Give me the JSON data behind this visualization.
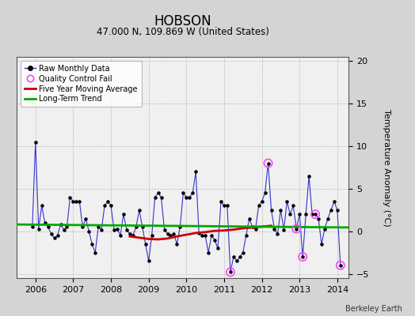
{
  "title": "HOBSON",
  "subtitle": "47.000 N, 109.869 W (United States)",
  "ylabel": "Temperature Anomaly (°C)",
  "credit": "Berkeley Earth",
  "ylim": [
    -5.5,
    20.5
  ],
  "yticks": [
    -5,
    0,
    5,
    10,
    15,
    20
  ],
  "xlim": [
    2005.5,
    2014.3
  ],
  "xticks": [
    2006,
    2007,
    2008,
    2009,
    2010,
    2011,
    2012,
    2013,
    2014
  ],
  "fig_bg_color": "#d4d4d4",
  "plot_bg_color": "#f0f0f0",
  "raw_color": "#3333cc",
  "raw_marker_color": "#000000",
  "ma_color": "#cc0000",
  "trend_color": "#00aa00",
  "qc_color": "#ff44ff",
  "raw_data": [
    [
      2005.917,
      0.5
    ],
    [
      2006.0,
      10.5
    ],
    [
      2006.083,
      0.3
    ],
    [
      2006.167,
      3.0
    ],
    [
      2006.25,
      1.0
    ],
    [
      2006.333,
      0.5
    ],
    [
      2006.417,
      -0.3
    ],
    [
      2006.5,
      -0.8
    ],
    [
      2006.583,
      -0.5
    ],
    [
      2006.667,
      0.8
    ],
    [
      2006.75,
      0.2
    ],
    [
      2006.833,
      0.5
    ],
    [
      2006.917,
      4.0
    ],
    [
      2007.0,
      3.5
    ],
    [
      2007.083,
      3.5
    ],
    [
      2007.167,
      3.5
    ],
    [
      2007.25,
      0.5
    ],
    [
      2007.333,
      1.5
    ],
    [
      2007.417,
      0.0
    ],
    [
      2007.5,
      -1.5
    ],
    [
      2007.583,
      -2.5
    ],
    [
      2007.667,
      0.5
    ],
    [
      2007.75,
      0.2
    ],
    [
      2007.833,
      3.0
    ],
    [
      2007.917,
      3.5
    ],
    [
      2008.0,
      3.0
    ],
    [
      2008.083,
      0.2
    ],
    [
      2008.167,
      0.3
    ],
    [
      2008.25,
      -0.5
    ],
    [
      2008.333,
      2.0
    ],
    [
      2008.417,
      0.2
    ],
    [
      2008.5,
      -0.3
    ],
    [
      2008.583,
      -0.5
    ],
    [
      2008.667,
      0.5
    ],
    [
      2008.75,
      2.5
    ],
    [
      2008.833,
      0.5
    ],
    [
      2008.917,
      -1.5
    ],
    [
      2009.0,
      -3.5
    ],
    [
      2009.083,
      -0.5
    ],
    [
      2009.167,
      4.0
    ],
    [
      2009.25,
      4.5
    ],
    [
      2009.333,
      4.0
    ],
    [
      2009.417,
      0.2
    ],
    [
      2009.5,
      -0.3
    ],
    [
      2009.583,
      -0.5
    ],
    [
      2009.667,
      -0.3
    ],
    [
      2009.75,
      -1.5
    ],
    [
      2009.833,
      0.5
    ],
    [
      2009.917,
      4.5
    ],
    [
      2010.0,
      4.0
    ],
    [
      2010.083,
      4.0
    ],
    [
      2010.167,
      4.5
    ],
    [
      2010.25,
      7.0
    ],
    [
      2010.333,
      -0.2
    ],
    [
      2010.417,
      -0.5
    ],
    [
      2010.5,
      -0.5
    ],
    [
      2010.583,
      -2.5
    ],
    [
      2010.667,
      -0.5
    ],
    [
      2010.75,
      -1.0
    ],
    [
      2010.833,
      -2.0
    ],
    [
      2010.917,
      3.5
    ],
    [
      2011.0,
      3.0
    ],
    [
      2011.083,
      3.0
    ],
    [
      2011.167,
      -4.8
    ],
    [
      2011.25,
      -3.0
    ],
    [
      2011.333,
      -3.5
    ],
    [
      2011.417,
      -3.0
    ],
    [
      2011.5,
      -2.5
    ],
    [
      2011.583,
      -0.5
    ],
    [
      2011.667,
      1.5
    ],
    [
      2011.75,
      0.5
    ],
    [
      2011.833,
      0.3
    ],
    [
      2011.917,
      3.0
    ],
    [
      2012.0,
      3.5
    ],
    [
      2012.083,
      4.5
    ],
    [
      2012.167,
      8.0
    ],
    [
      2012.25,
      2.5
    ],
    [
      2012.333,
      0.3
    ],
    [
      2012.417,
      -0.3
    ],
    [
      2012.5,
      2.5
    ],
    [
      2012.583,
      0.2
    ],
    [
      2012.667,
      3.5
    ],
    [
      2012.75,
      2.0
    ],
    [
      2012.833,
      3.0
    ],
    [
      2012.917,
      0.3
    ],
    [
      2013.0,
      2.0
    ],
    [
      2013.083,
      -3.0
    ],
    [
      2013.167,
      2.0
    ],
    [
      2013.25,
      6.5
    ],
    [
      2013.333,
      2.0
    ],
    [
      2013.417,
      2.0
    ],
    [
      2013.5,
      1.5
    ],
    [
      2013.583,
      -1.5
    ],
    [
      2013.667,
      0.3
    ],
    [
      2013.75,
      1.5
    ],
    [
      2013.833,
      2.5
    ],
    [
      2013.917,
      3.5
    ],
    [
      2014.0,
      2.5
    ],
    [
      2014.083,
      -4.0
    ]
  ],
  "ma_data": [
    [
      2008.5,
      -0.6
    ],
    [
      2008.75,
      -0.75
    ],
    [
      2009.0,
      -0.9
    ],
    [
      2009.25,
      -0.95
    ],
    [
      2009.5,
      -0.85
    ],
    [
      2009.75,
      -0.6
    ],
    [
      2010.0,
      -0.4
    ],
    [
      2010.25,
      -0.2
    ],
    [
      2010.5,
      -0.1
    ],
    [
      2010.75,
      0.05
    ],
    [
      2011.0,
      0.1
    ],
    [
      2011.25,
      0.2
    ],
    [
      2011.5,
      0.35
    ],
    [
      2011.75,
      0.45
    ],
    [
      2012.0,
      0.55
    ],
    [
      2012.25,
      0.65
    ]
  ],
  "trend_x": [
    2005.5,
    2014.3
  ],
  "trend_y": [
    0.8,
    0.45
  ],
  "qc_fail_points": [
    [
      2011.167,
      -4.8
    ],
    [
      2012.167,
      8.0
    ],
    [
      2012.917,
      0.3
    ],
    [
      2013.083,
      -3.0
    ],
    [
      2013.417,
      2.0
    ],
    [
      2014.083,
      -4.0
    ]
  ]
}
